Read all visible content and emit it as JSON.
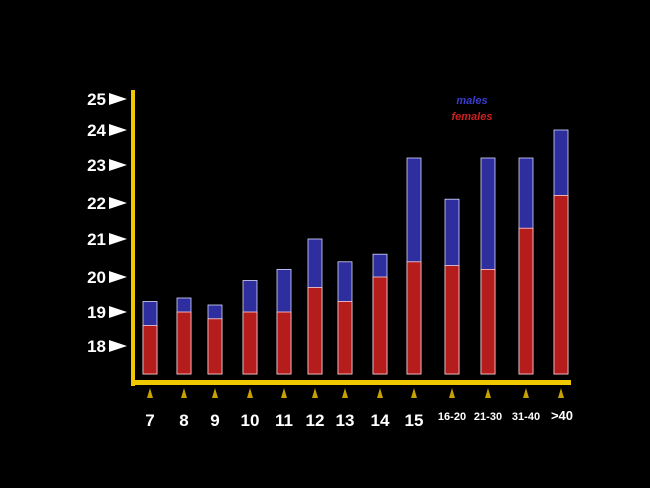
{
  "chart_data": {
    "type": "bar",
    "stacked": "overlay",
    "categories": [
      "7",
      "8",
      "9",
      "10",
      "11",
      "12",
      "13",
      "14",
      "15",
      "16-20",
      "21-30",
      "31-40",
      ">40"
    ],
    "series": [
      {
        "name": "males",
        "color": "#2e2e9e",
        "values": [
          19.3,
          19.4,
          19.2,
          19.9,
          20.2,
          21.0,
          20.4,
          20.6,
          23.2,
          22.1,
          23.2,
          23.2,
          24.0
        ]
      },
      {
        "name": "females",
        "color": "#b51d1d",
        "values": [
          18.6,
          19.0,
          18.8,
          19.0,
          19.0,
          19.7,
          19.3,
          20.0,
          20.4,
          20.3,
          20.2,
          21.3,
          22.2
        ]
      }
    ],
    "y_ticks": [
      "18",
      "19",
      "20",
      "21",
      "22",
      "23",
      "24",
      "25"
    ],
    "axis_color": "#f0c800",
    "marker_color": "#c8a000",
    "legend": {
      "placement": "top-right",
      "items": [
        "males",
        "females"
      ]
    },
    "grid": false
  }
}
